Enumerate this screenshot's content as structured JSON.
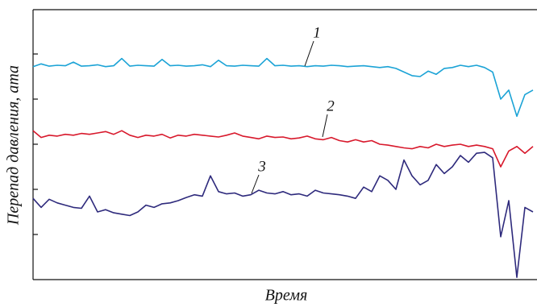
{
  "chart_data": {
    "type": "line",
    "x_label": "Время",
    "y_label": "Перепад давления, ата",
    "ylim": [
      0,
      6
    ],
    "yticks": [
      1,
      2,
      3,
      4,
      5
    ],
    "annotations": [
      "1",
      "2",
      "3"
    ],
    "series": [
      {
        "color": "#1ba3d6",
        "values": [
          4.72,
          4.78,
          4.73,
          4.75,
          4.74,
          4.82,
          4.73,
          4.74,
          4.76,
          4.72,
          4.74,
          4.9,
          4.73,
          4.75,
          4.74,
          4.73,
          4.88,
          4.74,
          4.75,
          4.73,
          4.74,
          4.76,
          4.72,
          4.86,
          4.74,
          4.73,
          4.75,
          4.74,
          4.73,
          4.9,
          4.74,
          4.75,
          4.73,
          4.74,
          4.72,
          4.74,
          4.73,
          4.75,
          4.74,
          4.72,
          4.73,
          4.74,
          4.72,
          4.7,
          4.72,
          4.68,
          4.6,
          4.52,
          4.5,
          4.62,
          4.55,
          4.68,
          4.7,
          4.75,
          4.72,
          4.75,
          4.7,
          4.6,
          4.0,
          4.2,
          3.62,
          4.1,
          4.2
        ]
      },
      {
        "color": "#d8192c",
        "values": [
          3.3,
          3.15,
          3.2,
          3.18,
          3.22,
          3.2,
          3.24,
          3.22,
          3.25,
          3.28,
          3.22,
          3.3,
          3.2,
          3.15,
          3.2,
          3.18,
          3.22,
          3.14,
          3.2,
          3.18,
          3.22,
          3.2,
          3.18,
          3.16,
          3.2,
          3.25,
          3.18,
          3.15,
          3.12,
          3.18,
          3.15,
          3.16,
          3.12,
          3.14,
          3.18,
          3.12,
          3.1,
          3.15,
          3.08,
          3.05,
          3.1,
          3.05,
          3.08,
          3.0,
          2.98,
          2.95,
          2.92,
          2.9,
          2.95,
          2.92,
          3.0,
          2.95,
          2.98,
          3.0,
          2.95,
          2.98,
          2.95,
          2.9,
          2.5,
          2.85,
          2.95,
          2.8,
          2.95
        ]
      },
      {
        "color": "#2e2a7c",
        "values": [
          1.8,
          1.6,
          1.78,
          1.7,
          1.65,
          1.6,
          1.58,
          1.85,
          1.5,
          1.55,
          1.48,
          1.45,
          1.42,
          1.5,
          1.65,
          1.6,
          1.68,
          1.7,
          1.75,
          1.82,
          1.88,
          1.85,
          2.3,
          1.95,
          1.9,
          1.92,
          1.85,
          1.88,
          1.98,
          1.92,
          1.9,
          1.95,
          1.88,
          1.9,
          1.85,
          1.98,
          1.92,
          1.9,
          1.88,
          1.85,
          1.8,
          2.05,
          1.95,
          2.3,
          2.2,
          2.0,
          2.65,
          2.3,
          2.1,
          2.2,
          2.55,
          2.35,
          2.5,
          2.75,
          2.6,
          2.8,
          2.82,
          2.7,
          0.95,
          1.75,
          0.05,
          1.6,
          1.5
        ]
      }
    ]
  }
}
